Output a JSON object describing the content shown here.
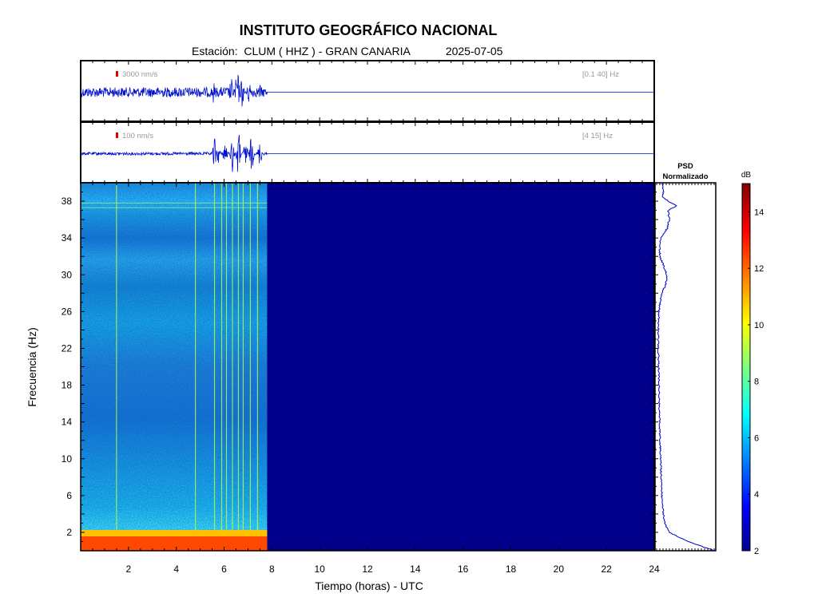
{
  "header": {
    "title": "INSTITUTO GEOGRÁFICO NACIONAL",
    "station_prefix": "Estación:  CLUM ( HHZ ) - GRAN CANARIA",
    "date": "2025-07-05"
  },
  "colors": {
    "trace": "#0010d0",
    "background_spec": "#00008a",
    "scale_bar": "#dd0000"
  },
  "chart_data": [
    {
      "type": "line",
      "name": "trace-broadband",
      "scale_label": "3000 nm/s",
      "band_label": "[0.1 40] Hz",
      "xlim": [
        0,
        24
      ],
      "data_end_hour": 7.8,
      "events": [
        {
          "hour": 5.55,
          "amp": 0.45
        },
        {
          "hour": 6.3,
          "amp": 0.55
        },
        {
          "hour": 6.55,
          "amp": 1.0
        },
        {
          "hour": 6.75,
          "amp": 0.6
        },
        {
          "hour": 7.05,
          "amp": 0.5
        },
        {
          "hour": 7.5,
          "amp": 0.3
        }
      ],
      "noise_level": 0.17
    },
    {
      "type": "line",
      "name": "trace-filtered",
      "scale_label": "100 nm/s",
      "band_label": "[4 15] Hz",
      "xlim": [
        0,
        24
      ],
      "data_end_hour": 7.8,
      "events": [
        {
          "hour": 5.6,
          "amp": 0.6
        },
        {
          "hour": 5.75,
          "amp": 0.4
        },
        {
          "hour": 6.05,
          "amp": 0.55
        },
        {
          "hour": 6.35,
          "amp": 0.7
        },
        {
          "hour": 6.6,
          "amp": 1.0
        },
        {
          "hour": 6.9,
          "amp": 0.65
        },
        {
          "hour": 7.15,
          "amp": 0.75
        },
        {
          "hour": 7.5,
          "amp": 0.5
        }
      ],
      "noise_level": 0.05
    },
    {
      "type": "heatmap",
      "name": "spectrogram",
      "xlabel": "Tiempo (horas) - UTC",
      "ylabel": "Frecuencia  (Hz)",
      "xlim": [
        0,
        24
      ],
      "ylim": [
        0,
        40
      ],
      "xticks": [
        2,
        4,
        6,
        8,
        10,
        12,
        14,
        16,
        18,
        20,
        22,
        24
      ],
      "yticks": [
        2,
        6,
        10,
        14,
        18,
        22,
        26,
        30,
        34,
        38
      ],
      "data_end_hour": 7.8,
      "colorbar": {
        "label": "dB",
        "range": [
          2,
          15
        ],
        "ticks": [
          2,
          4,
          6,
          8,
          10,
          12,
          14
        ]
      },
      "vertical_events_hours": [
        5.6,
        5.9,
        6.1,
        6.35,
        6.6,
        6.8,
        7.1,
        7.4,
        1.5,
        4.8
      ]
    },
    {
      "type": "line",
      "name": "psd",
      "title_lines": [
        "PSD",
        "Normalizado"
      ],
      "freq_hz": [
        0,
        1,
        2,
        3,
        4,
        5,
        6,
        8,
        10,
        12,
        14,
        16,
        18,
        20,
        22,
        24,
        26,
        27,
        28,
        29,
        30,
        31,
        32,
        33,
        34,
        35,
        36,
        37,
        37.5,
        38,
        38.5,
        39,
        40
      ],
      "value": [
        1.0,
        0.55,
        0.22,
        0.14,
        0.12,
        0.1,
        0.09,
        0.08,
        0.07,
        0.06,
        0.05,
        0.045,
        0.04,
        0.035,
        0.03,
        0.03,
        0.04,
        0.06,
        0.09,
        0.16,
        0.18,
        0.12,
        0.06,
        0.05,
        0.08,
        0.18,
        0.22,
        0.2,
        0.34,
        0.2,
        0.1,
        0.12,
        0.1
      ]
    }
  ]
}
